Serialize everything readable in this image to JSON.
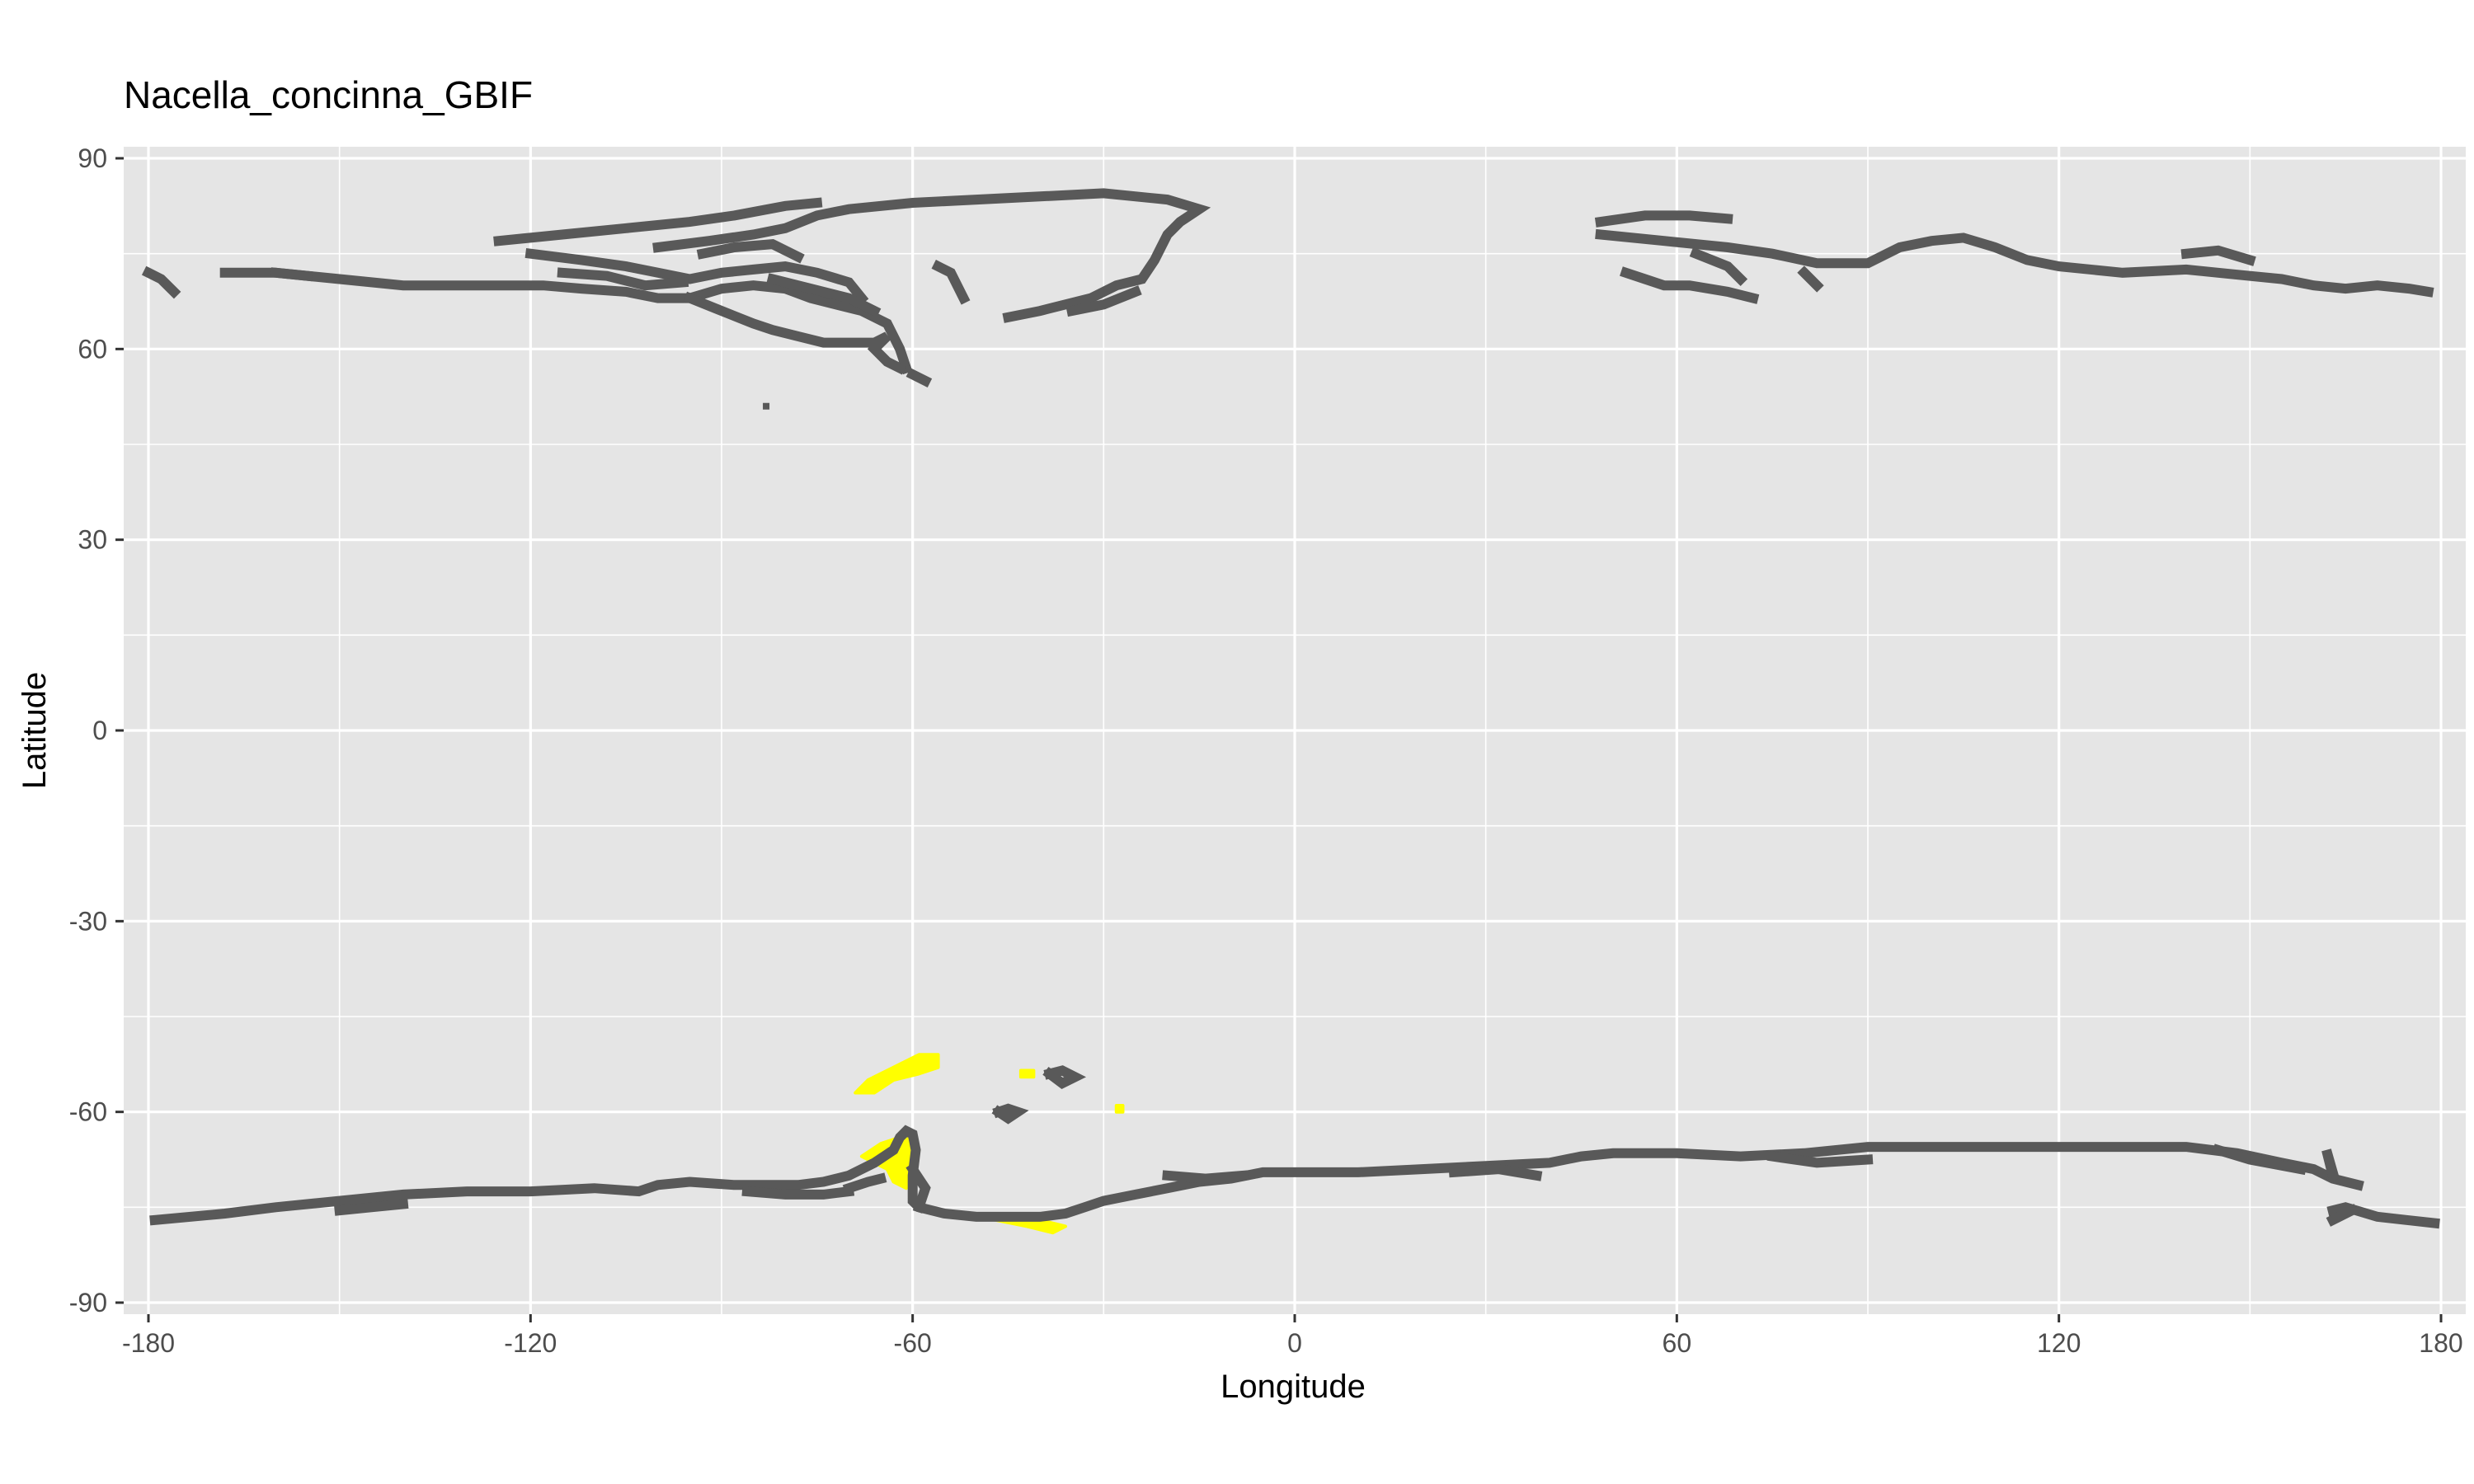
{
  "chart_data": {
    "type": "raster-map",
    "title": "Nacella_concinna_GBIF",
    "xlabel": "Longitude",
    "ylabel": "Latitude",
    "xlim": [
      -180,
      180
    ],
    "ylim": [
      -90,
      90
    ],
    "x_ticks": [
      -180,
      -120,
      -60,
      0,
      60,
      120,
      180
    ],
    "y_ticks": [
      90,
      60,
      30,
      0,
      -30,
      -60,
      -90
    ],
    "x_tick_labels": [
      "-180",
      "-120",
      "-60",
      "0",
      "60",
      "120",
      "180"
    ],
    "y_tick_labels": [
      "90",
      "60",
      "30",
      "0",
      "-30",
      "-60",
      "-90"
    ],
    "grid": true,
    "colors": {
      "panel_background": "#e5e5e5",
      "grid": "#ffffff",
      "coastline": "#595959",
      "suitable_habitat": "#ffff00",
      "tick_label": "#4d4d4d",
      "tick": "#333333"
    },
    "coastline_paths": [
      [
        [
          -179,
          -77
        ],
        [
          -168,
          -76
        ],
        [
          -160,
          -75
        ],
        [
          -150,
          -74
        ],
        [
          -140,
          -73
        ],
        [
          -130,
          -72.5
        ],
        [
          -120,
          -72.5
        ],
        [
          -110,
          -72
        ],
        [
          -103,
          -72.5
        ],
        [
          -100,
          -71.5
        ],
        [
          -95,
          -71
        ],
        [
          -88,
          -71.5
        ],
        [
          -83,
          -71.5
        ],
        [
          -78,
          -71.5
        ],
        [
          -74,
          -71
        ],
        [
          -70,
          -70
        ],
        [
          -66,
          -68
        ],
        [
          -63,
          -66
        ],
        [
          -62,
          -64
        ],
        [
          -61,
          -63
        ],
        [
          -60,
          -63.5
        ],
        [
          -59.5,
          -66
        ],
        [
          -60,
          -70
        ],
        [
          -60,
          -74
        ],
        [
          -59,
          -75
        ],
        [
          -55,
          -76
        ],
        [
          -50,
          -76.5
        ],
        [
          -45,
          -76.5
        ],
        [
          -40,
          -76.5
        ],
        [
          -36,
          -76
        ],
        [
          -33,
          -75
        ],
        [
          -30,
          -74
        ],
        [
          -25,
          -73
        ],
        [
          -20,
          -72
        ],
        [
          -15,
          -71
        ],
        [
          -10,
          -70.5
        ],
        [
          -5,
          -69.5
        ],
        [
          0,
          -69.5
        ],
        [
          10,
          -69.5
        ],
        [
          20,
          -69
        ],
        [
          30,
          -68.5
        ],
        [
          40,
          -68
        ],
        [
          45,
          -67
        ],
        [
          50,
          -66.5
        ],
        [
          60,
          -66.5
        ],
        [
          70,
          -67
        ],
        [
          80,
          -66.5
        ],
        [
          90,
          -65.5
        ],
        [
          100,
          -65.5
        ],
        [
          110,
          -65.5
        ],
        [
          120,
          -65.5
        ],
        [
          130,
          -65.5
        ],
        [
          140,
          -65.5
        ],
        [
          148,
          -66.5
        ],
        [
          155,
          -68
        ],
        [
          160,
          -69
        ],
        [
          163,
          -70.5
        ],
        [
          167,
          -71.5
        ]
      ],
      [
        [
          -86,
          -72.5
        ],
        [
          -80,
          -73
        ],
        [
          -74,
          -73
        ],
        [
          -70,
          -72.5
        ]
      ],
      [
        [
          -70,
          -72
        ],
        [
          -67,
          -71
        ],
        [
          -65,
          -70.5
        ]
      ],
      [
        [
          -150,
          -75.5
        ],
        [
          -145,
          -75
        ],
        [
          -140,
          -74.5
        ]
      ],
      [
        [
          -60,
          -69
        ],
        [
          -58,
          -72
        ],
        [
          -59,
          -75
        ]
      ],
      [
        [
          -20,
          -70
        ],
        [
          -14,
          -70.5
        ],
        [
          -8,
          -70
        ]
      ],
      [
        [
          25,
          -69.5
        ],
        [
          32,
          -69
        ],
        [
          38,
          -70
        ]
      ],
      [
        [
          75,
          -67
        ],
        [
          82,
          -68
        ],
        [
          90,
          -67.5
        ]
      ],
      [
        [
          145,
          -66
        ],
        [
          150,
          -67.5
        ],
        [
          158,
          -69
        ]
      ],
      [
        [
          163,
          -69.5
        ],
        [
          162,
          -66
        ],
        [
          163,
          -70
        ]
      ],
      [
        [
          163,
          -75.5
        ],
        [
          165,
          -75
        ],
        [
          170,
          -76.5
        ],
        [
          179,
          -77.5
        ]
      ],
      [
        [
          163,
          -77
        ],
        [
          166,
          -75.5
        ]
      ],
      [
        [
          -46.5,
          -60
        ],
        [
          -45,
          -59.5
        ],
        [
          -43.5,
          -60
        ],
        [
          -45,
          -61
        ],
        [
          -46.5,
          -60
        ]
      ],
      [
        [
          -38.5,
          -54
        ],
        [
          -36.5,
          -53.5
        ],
        [
          -34.5,
          -54.5
        ],
        [
          -36.5,
          -55.5
        ],
        [
          -38.5,
          -54
        ]
      ],
      [
        [
          -180,
          72
        ],
        [
          -178,
          71
        ],
        [
          -176,
          69
        ]
      ],
      [
        [
          -168,
          72
        ],
        [
          -160,
          72
        ],
        [
          -150,
          71
        ],
        [
          -140,
          70
        ],
        [
          -132,
          70
        ],
        [
          -125,
          70
        ],
        [
          -118,
          70
        ],
        [
          -112,
          69.5
        ],
        [
          -105,
          69
        ],
        [
          -100,
          68
        ],
        [
          -95,
          68
        ],
        [
          -90,
          69.5
        ],
        [
          -85,
          70
        ],
        [
          -80,
          69.5
        ],
        [
          -76,
          68
        ],
        [
          -72,
          67
        ],
        [
          -68,
          66
        ],
        [
          -64,
          64
        ],
        [
          -62,
          60
        ],
        [
          -61,
          57
        ]
      ],
      [
        [
          -100,
          76
        ],
        [
          -92,
          77
        ],
        [
          -85,
          78
        ],
        [
          -80,
          79
        ],
        [
          -75,
          81
        ],
        [
          -70,
          82
        ],
        [
          -60,
          83
        ],
        [
          -40,
          84
        ],
        [
          -30,
          84.5
        ],
        [
          -20,
          83.5
        ],
        [
          -15,
          82
        ],
        [
          -18,
          80
        ],
        [
          -20,
          78
        ],
        [
          -21,
          76
        ],
        [
          -22,
          74
        ],
        [
          -24,
          71
        ],
        [
          -28,
          70
        ],
        [
          -32,
          68
        ],
        [
          -40,
          66
        ],
        [
          -45,
          65
        ]
      ],
      [
        [
          -125,
          77
        ],
        [
          -115,
          78
        ],
        [
          -105,
          79
        ],
        [
          -95,
          80
        ],
        [
          -88,
          81
        ],
        [
          -80,
          82.5
        ],
        [
          -75,
          83
        ]
      ],
      [
        [
          -120,
          75
        ],
        [
          -112,
          74
        ],
        [
          -105,
          73
        ],
        [
          -100,
          72
        ],
        [
          -95,
          71
        ],
        [
          -90,
          72
        ],
        [
          -85,
          72.5
        ],
        [
          -80,
          73
        ],
        [
          -75,
          72
        ],
        [
          -70,
          70.5
        ],
        [
          -68,
          68
        ]
      ],
      [
        [
          -115,
          72
        ],
        [
          -108,
          71.5
        ],
        [
          -102,
          70
        ],
        [
          -96,
          70.5
        ]
      ],
      [
        [
          -93,
          75
        ],
        [
          -88,
          76
        ],
        [
          -82,
          76.5
        ],
        [
          -78,
          74.5
        ]
      ],
      [
        [
          -82,
          71
        ],
        [
          -78,
          70
        ],
        [
          -74,
          69
        ],
        [
          -70,
          68
        ],
        [
          -66,
          66
        ]
      ],
      [
        [
          -95,
          68
        ],
        [
          -90,
          66
        ],
        [
          -85,
          64
        ],
        [
          -82,
          63
        ],
        [
          -78,
          62
        ],
        [
          -74,
          61
        ],
        [
          -70,
          61
        ],
        [
          -66,
          61
        ],
        [
          -64,
          62
        ],
        [
          -66,
          60
        ],
        [
          -64,
          58
        ],
        [
          -62,
          57
        ]
      ],
      [
        [
          -56,
          73
        ],
        [
          -54,
          72
        ],
        [
          -52,
          68
        ]
      ],
      [
        [
          -25,
          69
        ],
        [
          -30,
          67
        ],
        [
          -35,
          66
        ]
      ],
      [
        [
          -60,
          56
        ],
        [
          -58,
          55
        ]
      ],
      [
        [
          -83,
          51
        ]
      ],
      [
        [
          48,
          80
        ],
        [
          55,
          81
        ],
        [
          62,
          81
        ],
        [
          68,
          80.5
        ]
      ],
      [
        [
          48,
          78
        ],
        [
          58,
          77
        ],
        [
          68,
          76
        ],
        [
          75,
          75
        ],
        [
          82,
          73.5
        ],
        [
          90,
          73.5
        ],
        [
          95,
          76
        ],
        [
          100,
          77
        ],
        [
          105,
          77.5
        ],
        [
          110,
          76
        ],
        [
          115,
          74
        ],
        [
          120,
          73
        ],
        [
          130,
          72
        ],
        [
          140,
          72.5
        ],
        [
          145,
          72
        ],
        [
          150,
          71.5
        ],
        [
          155,
          71
        ],
        [
          160,
          70
        ],
        [
          165,
          69.5
        ],
        [
          170,
          70
        ],
        [
          175,
          69.5
        ],
        [
          178,
          69
        ]
      ],
      [
        [
          52,
          72
        ],
        [
          55,
          71
        ],
        [
          58,
          70
        ],
        [
          62,
          70
        ],
        [
          68,
          69
        ],
        [
          72,
          68
        ]
      ],
      [
        [
          63,
          75
        ],
        [
          68,
          73
        ],
        [
          70,
          71
        ]
      ],
      [
        [
          80,
          72
        ],
        [
          82,
          70
        ]
      ],
      [
        [
          140,
          75
        ],
        [
          145,
          75.5
        ],
        [
          150,
          74
        ]
      ],
      [
        [
          -155,
          71.5
        ],
        [
          -160,
          72
        ]
      ]
    ],
    "suitable_habitat_patches": [
      [
        [
          -69,
          -57
        ],
        [
          -67,
          -55
        ],
        [
          -63,
          -53
        ],
        [
          -59,
          -51
        ],
        [
          -56,
          -51
        ],
        [
          -56,
          -53
        ],
        [
          -59,
          -54
        ],
        [
          -63,
          -55
        ],
        [
          -66,
          -57
        ],
        [
          -69,
          -57
        ]
      ],
      [
        [
          -68,
          -67
        ],
        [
          -65,
          -65
        ],
        [
          -62,
          -64
        ],
        [
          -60,
          -63
        ],
        [
          -59,
          -66
        ],
        [
          -60,
          -70
        ],
        [
          -61,
          -72
        ],
        [
          -63,
          -71
        ],
        [
          -64,
          -69
        ],
        [
          -66,
          -68
        ],
        [
          -68,
          -67
        ]
      ],
      [
        [
          -52,
          -76
        ],
        [
          -47,
          -77
        ],
        [
          -42,
          -78
        ],
        [
          -38,
          -79
        ],
        [
          -36,
          -78
        ],
        [
          -40,
          -77
        ],
        [
          -46,
          -76
        ],
        [
          -52,
          -76
        ]
      ],
      [
        [
          -43,
          -53.5
        ],
        [
          -41,
          -53.5
        ],
        [
          -41,
          -54.5
        ],
        [
          -43,
          -54.5
        ],
        [
          -43,
          -53.5
        ]
      ],
      [
        [
          -28,
          -59
        ],
        [
          -27,
          -59
        ],
        [
          -27,
          -60
        ],
        [
          -28,
          -60
        ],
        [
          -28,
          -59
        ]
      ]
    ]
  }
}
